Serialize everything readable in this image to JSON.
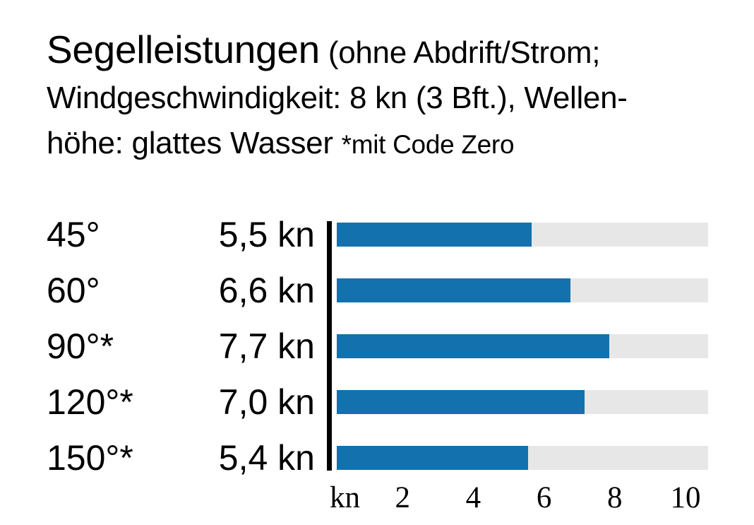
{
  "title": {
    "main": "Segelleistungen",
    "paren": "(ohne Abdrift/Strom;",
    "line2": "Windgeschwindigkeit: 8 kn (3 Bft.), Wellen-",
    "line3": "höhe: glattes Wasser",
    "note": "*mit Code Zero"
  },
  "colors": {
    "bar_fill": "#1371ad",
    "bar_track": "#e7e7e7",
    "axis_line": "#000000",
    "text": "#000000"
  },
  "chart_data": {
    "type": "bar",
    "orientation": "horizontal",
    "title": "Segelleistungen (ohne Abdrift/Strom; Windgeschwindigkeit: 8 kn (3 Bft.), Wellenhöhe: glattes Wasser *mit Code Zero",
    "categories": [
      "45°",
      "60°",
      "90°*",
      "120°*",
      "150°*"
    ],
    "values": [
      5.5,
      6.6,
      7.7,
      7.0,
      5.4
    ],
    "value_labels": [
      "5,5 kn",
      "6,6 kn",
      "7,7 kn",
      "7,0 kn",
      "5,4 kn"
    ],
    "unit": "kn",
    "axis": {
      "unit_label": "kn",
      "ticks": [
        2,
        4,
        6,
        8,
        10
      ],
      "tick_labels": [
        "2",
        "4",
        "6",
        "8",
        "10"
      ],
      "xlim": [
        0,
        10.5
      ]
    },
    "grid": false,
    "legend": false
  }
}
